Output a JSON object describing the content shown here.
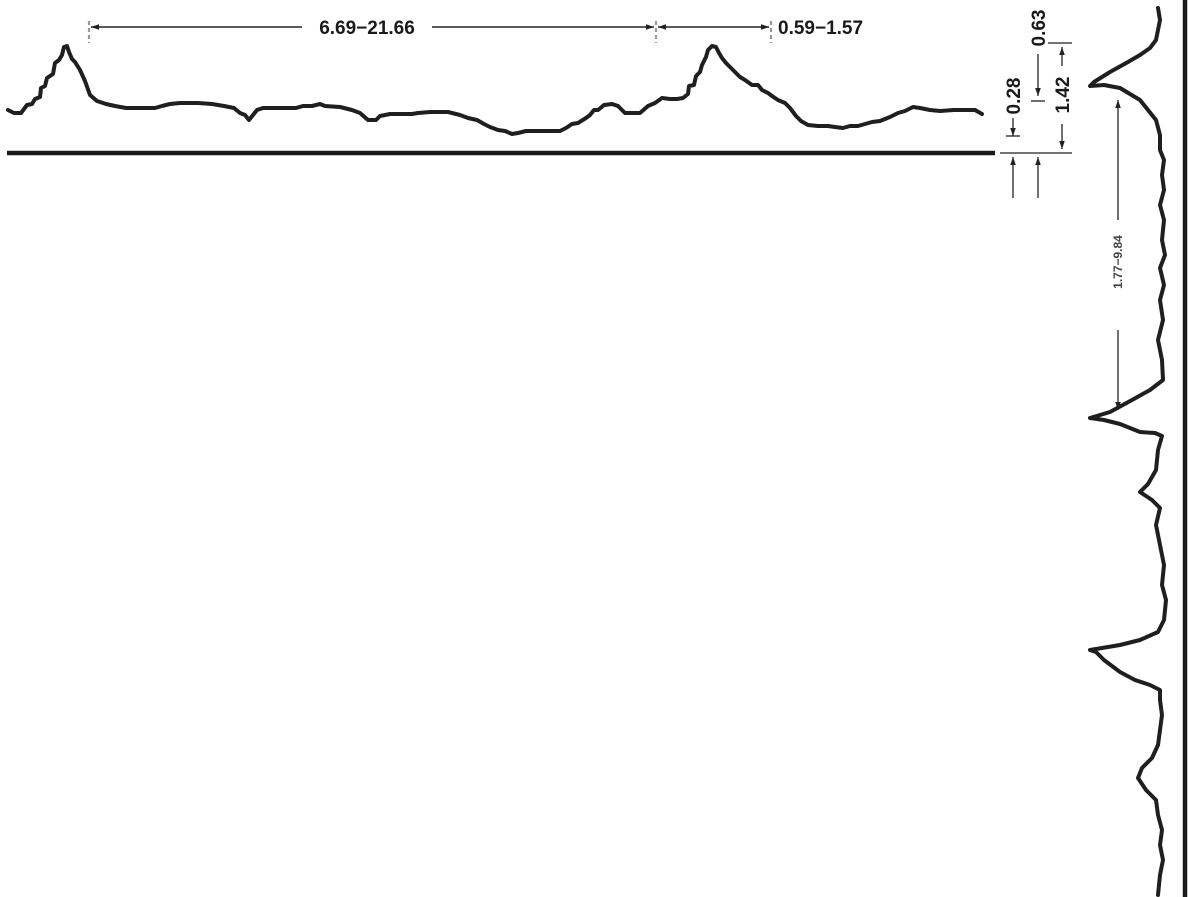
{
  "dimensions": {
    "spacing": "6.69−21.66",
    "width": "0.59−1.57",
    "offset_a": "0.28",
    "offset_b": "0.63",
    "height": "1.42",
    "vertical_spacing": "1.77−9.84"
  },
  "colors": {
    "line": "#1f1f1f",
    "extension": "#9a9a9a"
  }
}
